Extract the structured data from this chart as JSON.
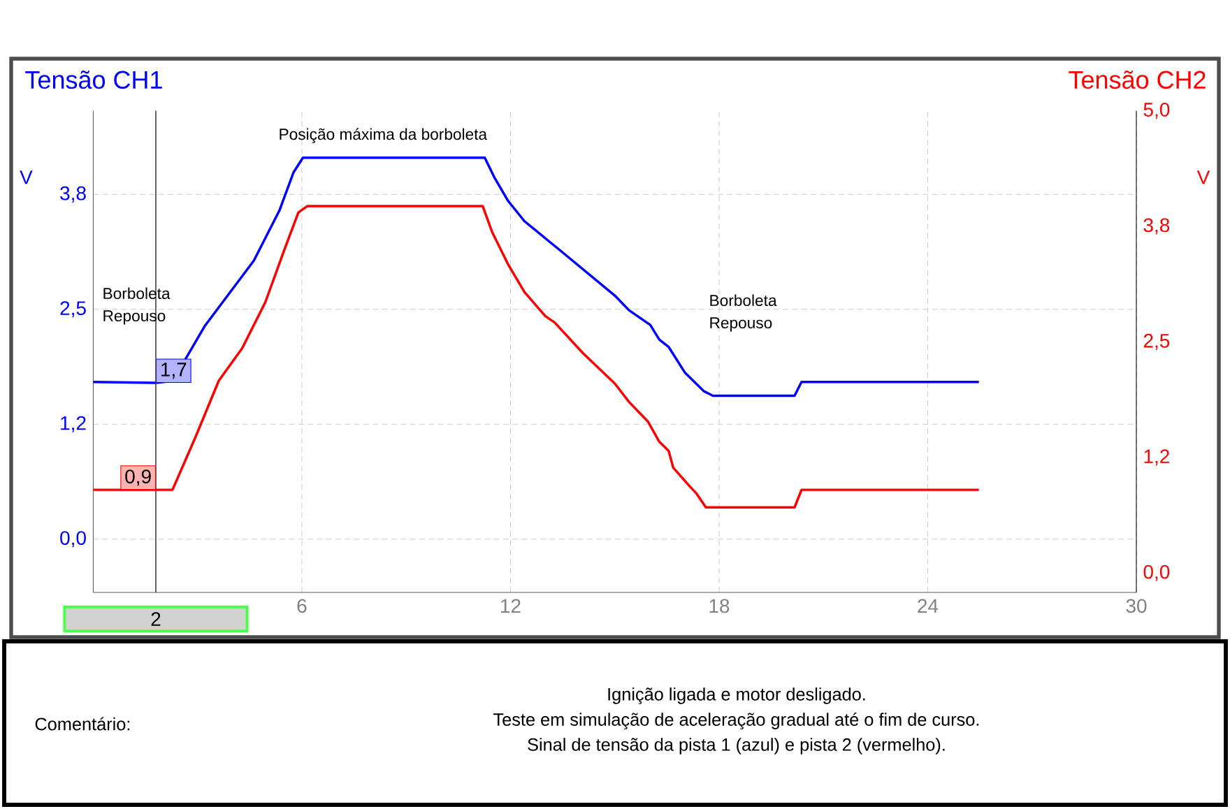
{
  "chart_data": {
    "type": "line",
    "xlim": [
      0,
      30
    ],
    "xticks": [
      6,
      12,
      18,
      24,
      30
    ],
    "ylim": [
      -0.58,
      4.66
    ],
    "yticks": [
      {
        "value": 0,
        "label": "0,0"
      },
      {
        "value": 1.25,
        "label": "1,2"
      },
      {
        "value": 2.5,
        "label": "2,5"
      },
      {
        "value": 3.75,
        "label": "3,8"
      }
    ],
    "y2lim": [
      -0.21,
      5.0
    ],
    "y2ticks": [
      {
        "value": 0,
        "label": "0,0"
      },
      {
        "value": 1.25,
        "label": "1,2"
      },
      {
        "value": 2.5,
        "label": "2,5"
      },
      {
        "value": 3.75,
        "label": "3,8"
      },
      {
        "value": 5,
        "label": "5,0"
      }
    ],
    "ylabel": "V",
    "y2label": "V",
    "grid": true,
    "marker": "none",
    "line_style": "solid",
    "series": [
      {
        "name": "Tensão CH1",
        "color": "#0000ff",
        "x": [
          0,
          1.8,
          2.28,
          2.81,
          3.21,
          4.42,
          4.62,
          5.36,
          5.76,
          6.03,
          11.26,
          11.53,
          11.93,
          12.4,
          13.14,
          13.4,
          15.0,
          15.41,
          16.02,
          16.28,
          16.55,
          17.02,
          17.56,
          17.82,
          20.17,
          20.37,
          25.47
        ],
        "values": [
          1.71,
          1.7,
          1.72,
          2.06,
          2.32,
          2.93,
          3.03,
          3.58,
          3.99,
          4.15,
          4.15,
          3.94,
          3.68,
          3.46,
          3.23,
          3.15,
          2.65,
          2.49,
          2.33,
          2.17,
          2.09,
          1.81,
          1.61,
          1.56,
          1.56,
          1.71,
          1.71
        ],
        "value_labels": [
          null,
          "1,7",
          null,
          null,
          null,
          null,
          null,
          null,
          null,
          null,
          null,
          null,
          null,
          null,
          null,
          null,
          null,
          null,
          null,
          null,
          null,
          null,
          null,
          null,
          null,
          null,
          null
        ]
      },
      {
        "name": "Tensão CH2",
        "color": "#ff0000",
        "axis": "y2",
        "x": [
          0,
          1.8,
          2.28,
          2.94,
          3.61,
          4.28,
          4.95,
          5.49,
          5.9,
          6.16,
          11.2,
          11.47,
          11.93,
          12.4,
          13.0,
          13.27,
          14.08,
          15.0,
          15.41,
          15.95,
          16.28,
          16.55,
          16.68,
          17.15,
          17.35,
          17.62,
          20.17,
          20.37,
          25.47
        ],
        "values": [
          0.9,
          0.9,
          0.9,
          1.47,
          2.08,
          2.43,
          2.93,
          3.49,
          3.9,
          3.97,
          3.97,
          3.69,
          3.34,
          3.04,
          2.78,
          2.71,
          2.38,
          2.05,
          1.85,
          1.64,
          1.42,
          1.32,
          1.14,
          0.94,
          0.86,
          0.71,
          0.71,
          0.9,
          0.9
        ],
        "value_labels": [
          null,
          "0,9",
          null,
          null,
          null,
          null,
          null,
          null,
          null,
          null,
          null,
          null,
          null,
          null,
          null,
          null,
          null,
          null,
          null,
          null,
          null,
          null,
          null,
          null,
          null,
          null,
          null,
          null,
          null
        ]
      }
    ],
    "ref_lines": [
      {
        "axis": "x",
        "value": 1.8,
        "label": "2",
        "color": "#404040"
      }
    ],
    "annotations": [
      "Posição máxima da borboleta",
      "Borboleta Repouso",
      "Borboleta Repouso",
      "Comentário:",
      "Ignição ligada e motor desligado.",
      "Teste em simulação de aceleração gradual até o fim de curso.",
      "Sinal de tensão da pista 1 (azul) e pista 2 (vermelho)."
    ]
  }
}
